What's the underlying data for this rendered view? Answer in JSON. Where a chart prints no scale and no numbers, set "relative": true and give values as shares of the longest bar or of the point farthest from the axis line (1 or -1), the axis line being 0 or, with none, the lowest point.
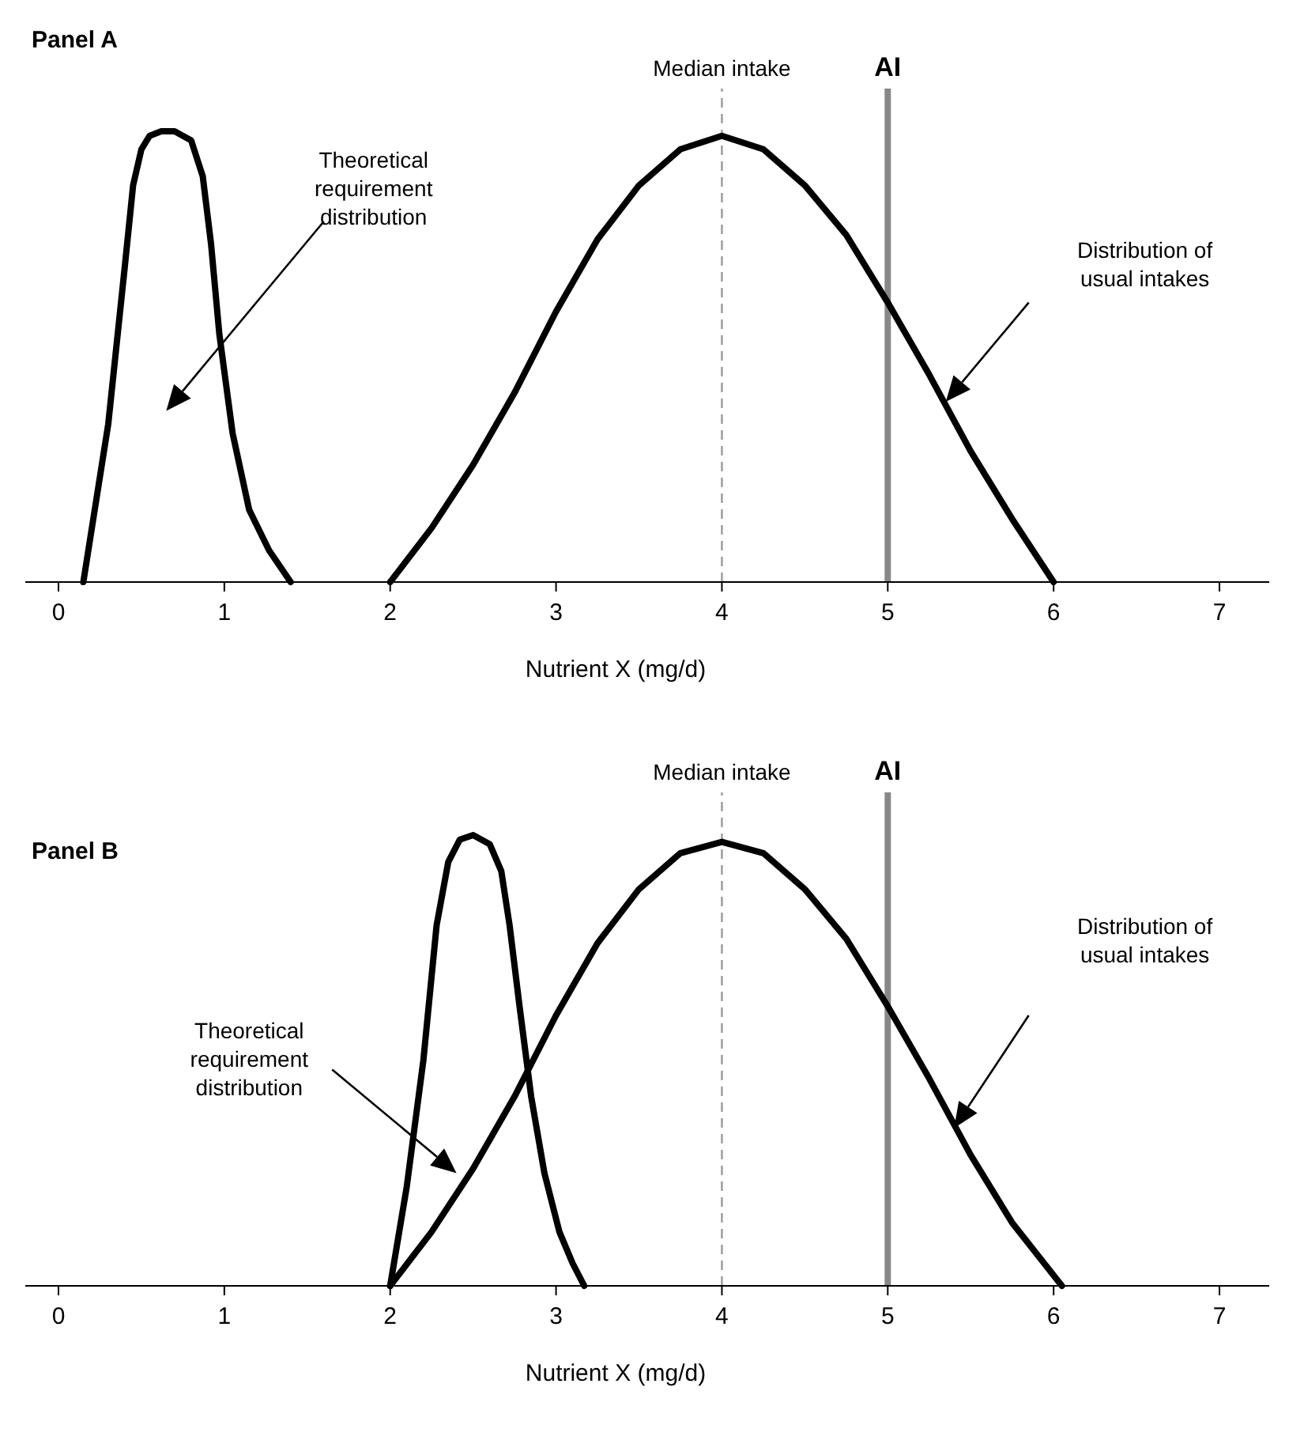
{
  "chart_data": [
    {
      "type": "line",
      "title": "Panel A",
      "xlabel": "Nutrient X (mg/d)",
      "relative": true,
      "xlim": [
        -0.2,
        7.3
      ],
      "xticks": [
        0,
        1,
        2,
        3,
        4,
        5,
        6,
        7
      ],
      "tick_labels": "x",
      "series": [
        {
          "color": "#000000",
          "x": [
            0.15,
            0.3,
            0.4,
            0.45,
            0.5,
            0.55,
            0.62,
            0.7,
            0.8,
            0.87,
            0.92,
            0.97,
            1.05,
            1.15,
            1.27,
            1.4
          ],
          "values": [
            0,
            0.35,
            0.7,
            0.88,
            0.96,
            0.99,
            1.0,
            1.0,
            0.98,
            0.9,
            0.75,
            0.55,
            0.33,
            0.16,
            0.07,
            0
          ]
        },
        {
          "color": "#000000",
          "x": [
            2,
            2.25,
            2.5,
            2.75,
            3,
            3.25,
            3.5,
            3.75,
            4,
            4.25,
            4.5,
            4.75,
            5,
            5.25,
            5.5,
            5.75,
            6
          ],
          "values": [
            0,
            0.12,
            0.26,
            0.42,
            0.6,
            0.76,
            0.88,
            0.96,
            0.99,
            0.96,
            0.88,
            0.77,
            0.62,
            0.46,
            0.29,
            0.14,
            0
          ]
        }
      ],
      "ref_lines": [
        {
          "axis": "x",
          "value": 4,
          "label": "Median intake",
          "color": "#999999",
          "line_style": "dashed"
        },
        {
          "axis": "x",
          "value": 5,
          "label": "AI",
          "color": "#888888",
          "line_style": "solid"
        }
      ],
      "annotations": [
        "Theoretical requirement distribution",
        "Distribution of usual intakes"
      ]
    },
    {
      "type": "line",
      "title": "Panel B",
      "xlabel": "Nutrient X (mg/d)",
      "relative": true,
      "xlim": [
        -0.2,
        7.3
      ],
      "xticks": [
        0,
        1,
        2,
        3,
        4,
        5,
        6,
        7
      ],
      "tick_labels": "x",
      "series": [
        {
          "color": "#000000",
          "x": [
            2,
            2.1,
            2.2,
            2.28,
            2.35,
            2.42,
            2.5,
            2.6,
            2.67,
            2.72,
            2.78,
            2.85,
            2.93,
            3.02,
            3.1,
            3.17
          ],
          "values": [
            0,
            0.22,
            0.5,
            0.8,
            0.94,
            0.99,
            1.0,
            0.98,
            0.92,
            0.8,
            0.62,
            0.42,
            0.25,
            0.12,
            0.05,
            0
          ]
        },
        {
          "color": "#000000",
          "x": [
            2,
            2.25,
            2.5,
            2.75,
            3,
            3.25,
            3.5,
            3.75,
            4,
            4.25,
            4.5,
            4.75,
            5,
            5.25,
            5.5,
            5.75,
            6.05
          ],
          "values": [
            0,
            0.12,
            0.26,
            0.42,
            0.6,
            0.76,
            0.88,
            0.96,
            0.985,
            0.96,
            0.88,
            0.77,
            0.62,
            0.46,
            0.29,
            0.14,
            0
          ]
        }
      ],
      "ref_lines": [
        {
          "axis": "x",
          "value": 4,
          "label": "Median intake",
          "color": "#999999",
          "line_style": "dashed"
        },
        {
          "axis": "x",
          "value": 5,
          "label": "AI",
          "color": "#888888",
          "line_style": "solid"
        }
      ],
      "annotations": [
        "Theoretical requirement distribution",
        "Distribution of usual intakes"
      ]
    }
  ]
}
